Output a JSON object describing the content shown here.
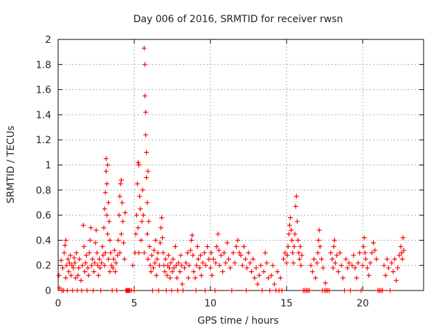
{
  "chart_data": {
    "type": "scatter",
    "title": "Day 006 of 2016, SRMTID for receiver rwsn",
    "xlabel": "GPS time / hours",
    "ylabel": "SRMTID / TECUs",
    "xlim": [
      0,
      24
    ],
    "ylim": [
      0,
      2
    ],
    "xticks": [
      0,
      5,
      10,
      15,
      20
    ],
    "yticks": [
      0,
      0.2,
      0.4,
      0.6,
      0.8,
      1,
      1.2,
      1.4,
      1.6,
      1.8,
      2
    ],
    "grid": true,
    "marker": "+",
    "color": "#ff0000",
    "points": [
      [
        0.05,
        0.12
      ],
      [
        0.1,
        0.02
      ],
      [
        0.2,
        0.24
      ],
      [
        0.25,
        0.0
      ],
      [
        0.3,
        0.18
      ],
      [
        0.35,
        0.0
      ],
      [
        0.4,
        0.3
      ],
      [
        0.45,
        0.36
      ],
      [
        0.5,
        0.4
      ],
      [
        0.5,
        0.1
      ],
      [
        0.55,
        0.2
      ],
      [
        0.6,
        0.0
      ],
      [
        0.65,
        0.25
      ],
      [
        0.7,
        0.15
      ],
      [
        0.75,
        0.22
      ],
      [
        0.8,
        0.28
      ],
      [
        0.85,
        0.12
      ],
      [
        0.9,
        0.2
      ],
      [
        0.95,
        0.0
      ],
      [
        1.0,
        0.18
      ],
      [
        1.05,
        0.26
      ],
      [
        1.1,
        0.22
      ],
      [
        1.15,
        0.1
      ],
      [
        1.2,
        0.3
      ],
      [
        1.25,
        0.0
      ],
      [
        1.3,
        0.12
      ],
      [
        1.35,
        0.18
      ],
      [
        1.4,
        0.25
      ],
      [
        1.5,
        0.08
      ],
      [
        1.55,
        0.0
      ],
      [
        1.6,
        0.2
      ],
      [
        1.65,
        0.52
      ],
      [
        1.7,
        0.35
      ],
      [
        1.75,
        0.15
      ],
      [
        1.8,
        0.22
      ],
      [
        1.85,
        0.28
      ],
      [
        1.9,
        0.0
      ],
      [
        1.95,
        0.18
      ],
      [
        2.0,
        0.12
      ],
      [
        2.05,
        0.3
      ],
      [
        2.1,
        0.4
      ],
      [
        2.15,
        0.5
      ],
      [
        2.2,
        0.2
      ],
      [
        2.25,
        0.25
      ],
      [
        2.3,
        0.0
      ],
      [
        2.35,
        0.15
      ],
      [
        2.4,
        0.22
      ],
      [
        2.45,
        0.38
      ],
      [
        2.5,
        0.48
      ],
      [
        2.55,
        0.3
      ],
      [
        2.6,
        0.2
      ],
      [
        2.65,
        0.12
      ],
      [
        2.7,
        0.25
      ],
      [
        2.75,
        0.18
      ],
      [
        2.8,
        0.0
      ],
      [
        2.85,
        0.22
      ],
      [
        2.9,
        0.35
      ],
      [
        2.95,
        0.28
      ],
      [
        3.0,
        0.5
      ],
      [
        3.05,
        0.65
      ],
      [
        3.05,
        0.2
      ],
      [
        3.1,
        0.78
      ],
      [
        3.1,
        0.3
      ],
      [
        3.15,
        0.95
      ],
      [
        3.15,
        1.05
      ],
      [
        3.2,
        0.85
      ],
      [
        3.2,
        0.6
      ],
      [
        3.25,
        0.45
      ],
      [
        3.25,
        1.0
      ],
      [
        3.3,
        0.7
      ],
      [
        3.3,
        0.25
      ],
      [
        3.35,
        0.55
      ],
      [
        3.4,
        0.4
      ],
      [
        3.4,
        0.15
      ],
      [
        3.45,
        0.3
      ],
      [
        3.5,
        0.2
      ],
      [
        3.55,
        0.0
      ],
      [
        3.6,
        0.18
      ],
      [
        3.65,
        0.25
      ],
      [
        3.7,
        0.32
      ],
      [
        3.75,
        0.15
      ],
      [
        3.8,
        0.22
      ],
      [
        3.85,
        0.0
      ],
      [
        3.9,
        0.28
      ],
      [
        3.95,
        0.4
      ],
      [
        4.0,
        0.6
      ],
      [
        4.05,
        0.75
      ],
      [
        4.05,
        0.3
      ],
      [
        4.1,
        0.85
      ],
      [
        4.15,
        0.88
      ],
      [
        4.15,
        0.45
      ],
      [
        4.2,
        0.7
      ],
      [
        4.25,
        0.55
      ],
      [
        4.3,
        0.38
      ],
      [
        4.35,
        0.25
      ],
      [
        4.4,
        0.62
      ],
      [
        4.45,
        0.0
      ],
      [
        4.5,
        0.0
      ],
      [
        4.55,
        0.0
      ],
      [
        4.6,
        0.0
      ],
      [
        4.65,
        0.0
      ],
      [
        4.7,
        0.0
      ],
      [
        4.8,
        0.0
      ],
      [
        4.9,
        0.2
      ],
      [
        5.0,
        0.0
      ],
      [
        5.05,
        0.3
      ],
      [
        5.1,
        0.45
      ],
      [
        5.15,
        0.6
      ],
      [
        5.2,
        0.85
      ],
      [
        5.25,
        1.02
      ],
      [
        5.25,
        0.5
      ],
      [
        5.3,
        1.0
      ],
      [
        5.3,
        0.3
      ],
      [
        5.35,
        0.75
      ],
      [
        5.4,
        0.65
      ],
      [
        5.45,
        0.4
      ],
      [
        5.5,
        0.55
      ],
      [
        5.55,
        0.8
      ],
      [
        5.6,
        0.6
      ],
      [
        5.65,
        1.93
      ],
      [
        5.65,
        0.3
      ],
      [
        5.7,
        1.8
      ],
      [
        5.7,
        1.55
      ],
      [
        5.75,
        1.42
      ],
      [
        5.75,
        1.24
      ],
      [
        5.8,
        1.1
      ],
      [
        5.8,
        0.9
      ],
      [
        5.85,
        0.7
      ],
      [
        5.85,
        0.45
      ],
      [
        5.9,
        0.95
      ],
      [
        5.9,
        0.25
      ],
      [
        5.95,
        0.55
      ],
      [
        6.0,
        0.35
      ],
      [
        6.05,
        0.2
      ],
      [
        6.1,
        0.15
      ],
      [
        6.15,
        0.28
      ],
      [
        6.2,
        0.0
      ],
      [
        6.25,
        0.18
      ],
      [
        6.3,
        0.32
      ],
      [
        6.35,
        0.22
      ],
      [
        6.4,
        0.4
      ],
      [
        6.45,
        0.12
      ],
      [
        6.5,
        0.25
      ],
      [
        6.55,
        0.3
      ],
      [
        6.6,
        0.0
      ],
      [
        6.65,
        0.2
      ],
      [
        6.7,
        0.38
      ],
      [
        6.75,
        0.5
      ],
      [
        6.8,
        0.58
      ],
      [
        6.85,
        0.42
      ],
      [
        6.9,
        0.3
      ],
      [
        6.95,
        0.2
      ],
      [
        7.0,
        0.15
      ],
      [
        7.05,
        0.25
      ],
      [
        7.1,
        0.0
      ],
      [
        7.15,
        0.12
      ],
      [
        7.2,
        0.2
      ],
      [
        7.25,
        0.28
      ],
      [
        7.3,
        0.18
      ],
      [
        7.35,
        0.1
      ],
      [
        7.4,
        0.22
      ],
      [
        7.45,
        0.0
      ],
      [
        7.5,
        0.15
      ],
      [
        7.55,
        0.25
      ],
      [
        7.6,
        0.18
      ],
      [
        7.7,
        0.35
      ],
      [
        7.75,
        0.2
      ],
      [
        7.8,
        0.1
      ],
      [
        7.85,
        0.0
      ],
      [
        7.9,
        0.22
      ],
      [
        8.0,
        0.15
      ],
      [
        8.05,
        0.28
      ],
      [
        8.1,
        0.2
      ],
      [
        8.15,
        0.05
      ],
      [
        8.2,
        0.0
      ],
      [
        8.3,
        0.18
      ],
      [
        8.4,
        0.22
      ],
      [
        8.5,
        0.3
      ],
      [
        8.55,
        0.1
      ],
      [
        8.6,
        0.2
      ],
      [
        8.7,
        0.32
      ],
      [
        8.75,
        0.4
      ],
      [
        8.8,
        0.44
      ],
      [
        8.85,
        0.28
      ],
      [
        8.9,
        0.15
      ],
      [
        9.0,
        0.1
      ],
      [
        9.05,
        0.0
      ],
      [
        9.1,
        0.2
      ],
      [
        9.15,
        0.35
      ],
      [
        9.2,
        0.25
      ],
      [
        9.3,
        0.18
      ],
      [
        9.35,
        0.28
      ],
      [
        9.4,
        0.12
      ],
      [
        9.5,
        0.22
      ],
      [
        9.6,
        0.3
      ],
      [
        9.65,
        0.0
      ],
      [
        9.7,
        0.2
      ],
      [
        9.8,
        0.35
      ],
      [
        9.9,
        0.25
      ],
      [
        10.0,
        0.18
      ],
      [
        10.05,
        0.3
      ],
      [
        10.1,
        0.12
      ],
      [
        10.2,
        0.25
      ],
      [
        10.3,
        0.0
      ],
      [
        10.35,
        0.22
      ],
      [
        10.4,
        0.35
      ],
      [
        10.5,
        0.45
      ],
      [
        10.55,
        0.32
      ],
      [
        10.6,
        0.2
      ],
      [
        10.7,
        0.28
      ],
      [
        10.8,
        0.15
      ],
      [
        10.9,
        0.3
      ],
      [
        11.0,
        0.22
      ],
      [
        11.1,
        0.38
      ],
      [
        11.2,
        0.25
      ],
      [
        11.3,
        0.18
      ],
      [
        11.4,
        0.0
      ],
      [
        11.5,
        0.3
      ],
      [
        11.6,
        0.22
      ],
      [
        11.7,
        0.35
      ],
      [
        11.8,
        0.4
      ],
      [
        11.9,
        0.3
      ],
      [
        12.0,
        0.28
      ],
      [
        12.1,
        0.2
      ],
      [
        12.2,
        0.35
      ],
      [
        12.3,
        0.25
      ],
      [
        12.35,
        0.0
      ],
      [
        12.4,
        0.18
      ],
      [
        12.5,
        0.3
      ],
      [
        12.6,
        0.22
      ],
      [
        12.7,
        0.15
      ],
      [
        12.8,
        0.25
      ],
      [
        12.9,
        0.1
      ],
      [
        13.0,
        0.18
      ],
      [
        13.1,
        0.05
      ],
      [
        13.2,
        0.12
      ],
      [
        13.3,
        0.2
      ],
      [
        13.4,
        0.0
      ],
      [
        13.5,
        0.15
      ],
      [
        13.6,
        0.3
      ],
      [
        13.7,
        0.22
      ],
      [
        13.8,
        0.1
      ],
      [
        13.9,
        0.0
      ],
      [
        14.0,
        0.12
      ],
      [
        14.1,
        0.2
      ],
      [
        14.2,
        0.05
      ],
      [
        14.3,
        0.0
      ],
      [
        14.4,
        0.15
      ],
      [
        14.5,
        0.0
      ],
      [
        14.6,
        0.1
      ],
      [
        14.7,
        0.0
      ],
      [
        14.8,
        0.25
      ],
      [
        14.9,
        0.3
      ],
      [
        15.0,
        0.22
      ],
      [
        15.05,
        0.28
      ],
      [
        15.1,
        0.35
      ],
      [
        15.15,
        0.45
      ],
      [
        15.2,
        0.52
      ],
      [
        15.25,
        0.58
      ],
      [
        15.3,
        0.48
      ],
      [
        15.35,
        0.4
      ],
      [
        15.4,
        0.3
      ],
      [
        15.45,
        0.22
      ],
      [
        15.5,
        0.35
      ],
      [
        15.55,
        0.45
      ],
      [
        15.6,
        0.67
      ],
      [
        15.65,
        0.75
      ],
      [
        15.7,
        0.55
      ],
      [
        15.75,
        0.4
      ],
      [
        15.8,
        0.3
      ],
      [
        15.85,
        0.25
      ],
      [
        15.9,
        0.35
      ],
      [
        15.95,
        0.2
      ],
      [
        16.0,
        0.28
      ],
      [
        16.1,
        0.0
      ],
      [
        16.2,
        0.0
      ],
      [
        16.3,
        0.0
      ],
      [
        16.4,
        0.0
      ],
      [
        16.5,
        0.0
      ],
      [
        16.6,
        0.2
      ],
      [
        16.7,
        0.15
      ],
      [
        16.8,
        0.25
      ],
      [
        16.9,
        0.1
      ],
      [
        17.0,
        0.22
      ],
      [
        17.05,
        0.3
      ],
      [
        17.1,
        0.4
      ],
      [
        17.15,
        0.48
      ],
      [
        17.2,
        0.35
      ],
      [
        17.3,
        0.25
      ],
      [
        17.35,
        0.0
      ],
      [
        17.4,
        0.18
      ],
      [
        17.5,
        0.0
      ],
      [
        17.55,
        0.06
      ],
      [
        17.6,
        0.0
      ],
      [
        17.7,
        0.0
      ],
      [
        17.8,
        0.0
      ],
      [
        17.9,
        0.3
      ],
      [
        18.0,
        0.25
      ],
      [
        18.05,
        0.18
      ],
      [
        18.1,
        0.35
      ],
      [
        18.15,
        0.4
      ],
      [
        18.2,
        0.22
      ],
      [
        18.3,
        0.28
      ],
      [
        18.4,
        0.15
      ],
      [
        18.5,
        0.3
      ],
      [
        18.6,
        0.2
      ],
      [
        18.7,
        0.1
      ],
      [
        18.8,
        0.0
      ],
      [
        18.9,
        0.25
      ],
      [
        19.0,
        0.18
      ],
      [
        19.1,
        0.22
      ],
      [
        19.2,
        0.0
      ],
      [
        19.3,
        0.2
      ],
      [
        19.4,
        0.28
      ],
      [
        19.5,
        0.18
      ],
      [
        19.6,
        0.1
      ],
      [
        19.7,
        0.22
      ],
      [
        19.8,
        0.3
      ],
      [
        19.9,
        0.0
      ],
      [
        20.0,
        0.2
      ],
      [
        20.05,
        0.35
      ],
      [
        20.1,
        0.42
      ],
      [
        20.15,
        0.3
      ],
      [
        20.2,
        0.25
      ],
      [
        20.3,
        0.18
      ],
      [
        20.4,
        0.12
      ],
      [
        20.5,
        0.22
      ],
      [
        20.6,
        0.3
      ],
      [
        20.7,
        0.38
      ],
      [
        20.8,
        0.32
      ],
      [
        20.9,
        0.25
      ],
      [
        21.0,
        0.0
      ],
      [
        21.1,
        0.0
      ],
      [
        21.2,
        0.0
      ],
      [
        21.3,
        0.0
      ],
      [
        21.4,
        0.2
      ],
      [
        21.5,
        0.12
      ],
      [
        21.6,
        0.25
      ],
      [
        21.7,
        0.18
      ],
      [
        21.8,
        0.0
      ],
      [
        21.9,
        0.22
      ],
      [
        22.0,
        0.15
      ],
      [
        22.1,
        0.25
      ],
      [
        22.2,
        0.08
      ],
      [
        22.3,
        0.18
      ],
      [
        22.4,
        0.28
      ],
      [
        22.5,
        0.35
      ],
      [
        22.55,
        0.3
      ],
      [
        22.6,
        0.25
      ],
      [
        22.65,
        0.42
      ],
      [
        22.7,
        0.32
      ]
    ]
  }
}
